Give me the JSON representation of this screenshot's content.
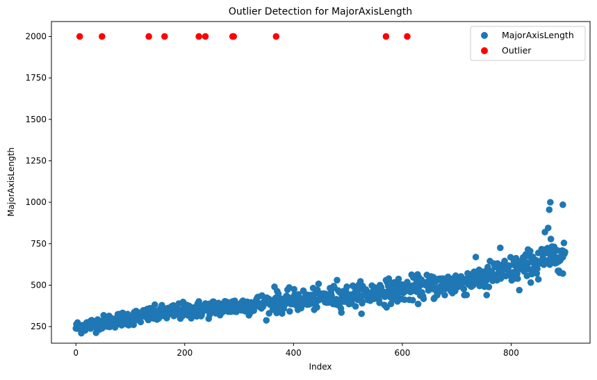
{
  "chart_data": {
    "type": "scatter",
    "title": "Outlier Detection for MajorAxisLength",
    "xlabel": "Index",
    "ylabel": "MajorAxisLength",
    "xlim": [
      -45,
      945
    ],
    "ylim": [
      150,
      2090
    ],
    "xticks": [
      0,
      200,
      400,
      600,
      800
    ],
    "yticks": [
      250,
      500,
      750,
      1000,
      1250,
      1500,
      1750,
      2000
    ],
    "grid": false,
    "legend": "top-right",
    "main_series": {
      "name": "MajorAxisLength",
      "color": "#1f77b4",
      "trend_control": [
        [
          0,
          245
        ],
        [
          100,
          305
        ],
        [
          200,
          345
        ],
        [
          300,
          375
        ],
        [
          400,
          405
        ],
        [
          500,
          435
        ],
        [
          600,
          470
        ],
        [
          700,
          510
        ],
        [
          800,
          590
        ],
        [
          900,
          700
        ]
      ],
      "count": 900,
      "noise": 28,
      "extra_points": [
        [
          872,
          1000
        ],
        [
          870,
          955
        ],
        [
          895,
          985
        ],
        [
          868,
          845
        ],
        [
          862,
          820
        ],
        [
          780,
          725
        ],
        [
          815,
          470
        ],
        [
          755,
          440
        ],
        [
          850,
          535
        ],
        [
          895,
          570
        ],
        [
          365,
          490
        ],
        [
          480,
          530
        ],
        [
          570,
          530
        ],
        [
          620,
          555
        ]
      ]
    },
    "outliers": {
      "name": "Outlier",
      "color": "#ff0000",
      "points": [
        [
          7,
          2000
        ],
        [
          48,
          2000
        ],
        [
          134,
          2000
        ],
        [
          163,
          2000
        ],
        [
          226,
          2000
        ],
        [
          238,
          2000
        ],
        [
          288,
          2000
        ],
        [
          290,
          2000
        ],
        [
          368,
          2000
        ],
        [
          570,
          2000
        ],
        [
          609,
          2000
        ]
      ]
    }
  }
}
